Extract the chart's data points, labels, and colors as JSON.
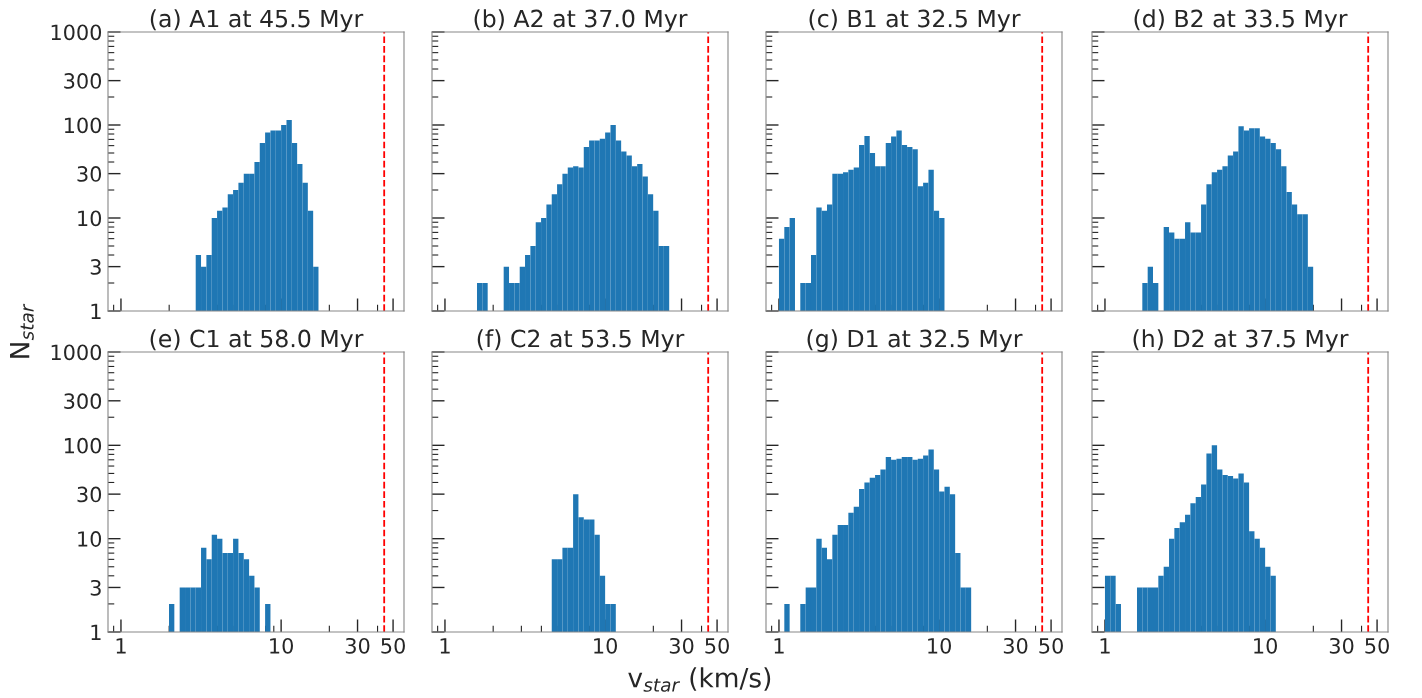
{
  "chart_data": [
    {
      "type": "histogram",
      "title": "(a) A1 at 45.5 Myr",
      "color": "#1f77b4",
      "log": "xy",
      "xlim": [
        0.83,
        58.5
      ],
      "ylim": [
        1,
        1000
      ],
      "xticks": [
        1,
        10,
        30,
        50
      ],
      "yticks": [
        1,
        3,
        10,
        30,
        100,
        300,
        1000
      ],
      "tick_labels": "y",
      "ylabel": "N$_{star}$",
      "ref_lines": [
        {
          "axis": "x",
          "value": 44,
          "color": "#ff0000",
          "line_style": "dashed"
        }
      ],
      "bins": [
        2.929,
        3.162,
        3.415,
        3.687,
        3.981,
        4.299,
        4.642,
        5.012,
        5.412,
        5.843,
        6.31,
        6.813,
        7.356,
        7.943,
        8.577,
        9.261,
        10.0,
        10.8,
        11.66,
        12.59,
        13.59,
        14.68,
        15.85,
        17.11
      ],
      "values": [
        4,
        3,
        4,
        10,
        12,
        13,
        18,
        20,
        24,
        30,
        30,
        40,
        64,
        83,
        87,
        87,
        100,
        113,
        64,
        38,
        24,
        12,
        3
      ]
    },
    {
      "type": "histogram",
      "title": "(b) A2 at 37.0 Myr",
      "color": "#1f77b4",
      "log": "xy",
      "xlim": [
        0.83,
        58.5
      ],
      "ylim": [
        1,
        1000
      ],
      "xticks": [
        1,
        10,
        30,
        50
      ],
      "yticks": [
        1,
        3,
        10,
        30,
        100,
        300,
        1000
      ],
      "tick_labels": false,
      "ref_lines": [
        {
          "axis": "x",
          "value": 44,
          "color": "#ff0000",
          "line_style": "dashed"
        }
      ],
      "bins": [
        1.585,
        1.711,
        1.848,
        1.995,
        2.154,
        2.326,
        2.512,
        2.712,
        2.929,
        3.162,
        3.415,
        3.687,
        3.981,
        4.299,
        4.642,
        5.012,
        5.412,
        5.843,
        6.31,
        6.813,
        7.356,
        7.943,
        8.577,
        9.261,
        10.0,
        10.8,
        11.66,
        12.59,
        13.59,
        14.68,
        15.85,
        17.11,
        18.48,
        19.95,
        21.54,
        23.26,
        25.12
      ],
      "values": [
        2,
        2,
        null,
        null,
        null,
        3,
        2,
        2,
        3,
        4,
        5,
        9,
        10,
        14,
        18,
        23,
        30,
        35,
        36,
        35,
        58,
        68,
        68,
        71,
        83,
        100,
        68,
        52,
        47,
        36,
        38,
        28,
        18,
        12,
        5,
        5
      ]
    },
    {
      "type": "histogram",
      "title": "(c) B1 at 32.5 Myr",
      "color": "#1f77b4",
      "log": "xy",
      "xlim": [
        0.83,
        58.5
      ],
      "ylim": [
        1,
        1000
      ],
      "xticks": [
        1,
        10,
        30,
        50
      ],
      "yticks": [
        1,
        3,
        10,
        30,
        100,
        300,
        1000
      ],
      "tick_labels": false,
      "ref_lines": [
        {
          "axis": "x",
          "value": 44,
          "color": "#ff0000",
          "line_style": "dashed"
        }
      ],
      "bins": [
        1.0,
        1.08,
        1.166,
        1.259,
        1.359,
        1.468,
        1.585,
        1.711,
        1.848,
        1.995,
        2.154,
        2.326,
        2.512,
        2.712,
        2.929,
        3.162,
        3.415,
        3.687,
        3.981,
        4.299,
        4.642,
        5.012,
        5.412,
        5.843,
        6.31,
        6.813,
        7.356,
        7.943,
        8.577,
        9.261,
        10.0,
        10.8
      ],
      "values": [
        6,
        8,
        10,
        null,
        2,
        2,
        4,
        13,
        12,
        14,
        30,
        30,
        31,
        33,
        35,
        61,
        76,
        50,
        36,
        36,
        64,
        75,
        87,
        61,
        58,
        55,
        22,
        24,
        33,
        12,
        10
      ]
    },
    {
      "type": "histogram",
      "title": "(d) B2 at 33.5 Myr",
      "color": "#1f77b4",
      "log": "xy",
      "xlim": [
        0.83,
        58.5
      ],
      "ylim": [
        1,
        1000
      ],
      "xticks": [
        1,
        10,
        30,
        50
      ],
      "yticks": [
        1,
        3,
        10,
        30,
        100,
        300,
        1000
      ],
      "tick_labels": false,
      "ref_lines": [
        {
          "axis": "x",
          "value": 44,
          "color": "#ff0000",
          "line_style": "dashed"
        }
      ],
      "bins": [
        1.711,
        1.848,
        1.995,
        2.154,
        2.326,
        2.512,
        2.712,
        2.929,
        3.162,
        3.415,
        3.687,
        3.981,
        4.299,
        4.642,
        5.012,
        5.412,
        5.843,
        6.31,
        6.813,
        7.356,
        7.943,
        8.577,
        9.261,
        10.0,
        10.8,
        11.66,
        12.59,
        13.59,
        14.68,
        15.85,
        17.11,
        18.48,
        19.95
      ],
      "values": [
        2,
        3,
        2,
        null,
        8,
        7,
        6,
        6,
        9,
        7,
        7,
        14,
        23,
        31,
        33,
        36,
        47,
        52,
        97,
        87,
        92,
        92,
        75,
        71,
        64,
        55,
        36,
        19,
        14,
        11,
        11,
        3
      ]
    },
    {
      "type": "histogram",
      "title": "(e) C1 at 58.0 Myr",
      "color": "#1f77b4",
      "log": "xy",
      "xlim": [
        0.83,
        58.5
      ],
      "ylim": [
        1,
        1000
      ],
      "xticks": [
        1,
        10,
        30,
        50
      ],
      "yticks": [
        1,
        3,
        10,
        30,
        100,
        300,
        1000
      ],
      "ref_lines": [
        {
          "axis": "x",
          "value": 44,
          "color": "#ff0000",
          "line_style": "dashed"
        }
      ],
      "bins": [
        1.995,
        2.154,
        2.326,
        2.512,
        2.712,
        2.929,
        3.162,
        3.415,
        3.687,
        3.981,
        4.299,
        4.642,
        5.012,
        5.412,
        5.843,
        6.31,
        6.813,
        7.356,
        7.943,
        8.577
      ],
      "values": [
        2,
        null,
        3,
        3,
        3,
        3,
        8,
        6,
        11,
        10,
        7,
        7,
        10,
        7,
        6,
        4,
        3,
        null,
        2
      ]
    },
    {
      "type": "histogram",
      "title": "(f) C2 at 53.5 Myr",
      "color": "#1f77b4",
      "log": "xy",
      "xlim": [
        0.83,
        58.5
      ],
      "ylim": [
        1,
        1000
      ],
      "xticks": [
        1,
        10,
        30,
        50
      ],
      "yticks": [
        1,
        3,
        10,
        30,
        100,
        300,
        1000
      ],
      "tick_labels": "x",
      "xlabel": "v$_{star}$ (km/s)",
      "ref_lines": [
        {
          "axis": "x",
          "value": 44,
          "color": "#ff0000",
          "line_style": "dashed"
        }
      ],
      "bins": [
        4.642,
        5.012,
        5.412,
        5.843,
        6.31,
        6.813,
        7.356,
        7.943,
        8.577,
        9.261,
        10.0,
        10.8,
        11.66
      ],
      "values": [
        6,
        6,
        8,
        8,
        30,
        17,
        16,
        16,
        11,
        4,
        2,
        2
      ]
    },
    {
      "type": "histogram",
      "title": "(g) D1 at 32.5 Myr",
      "color": "#1f77b4",
      "log": "xy",
      "xlim": [
        0.83,
        58.5
      ],
      "ylim": [
        1,
        1000
      ],
      "xticks": [
        1,
        10,
        30,
        50
      ],
      "yticks": [
        1,
        3,
        10,
        30,
        100,
        300,
        1000
      ],
      "tick_labels": "x",
      "ref_lines": [
        {
          "axis": "x",
          "value": 44,
          "color": "#ff0000",
          "line_style": "dashed"
        }
      ],
      "bins": [
        1.08,
        1.166,
        1.259,
        1.359,
        1.468,
        1.585,
        1.711,
        1.848,
        1.995,
        2.154,
        2.326,
        2.512,
        2.712,
        2.929,
        3.162,
        3.415,
        3.687,
        3.981,
        4.299,
        4.642,
        5.012,
        5.412,
        5.843,
        6.31,
        6.813,
        7.356,
        7.943,
        8.577,
        9.261,
        10.0,
        10.8,
        11.66,
        12.59,
        13.59,
        14.68,
        15.85
      ],
      "values": [
        2,
        null,
        null,
        2,
        3,
        3,
        10,
        8,
        6,
        11,
        14,
        14,
        19,
        22,
        34,
        40,
        45,
        48,
        55,
        75,
        70,
        72,
        75,
        75,
        70,
        72,
        78,
        90,
        55,
        32,
        36,
        30,
        7,
        3,
        3
      ]
    },
    {
      "type": "histogram",
      "title": "(h) D2 at 37.5 Myr",
      "color": "#1f77b4",
      "log": "xy",
      "xlim": [
        0.83,
        58.5
      ],
      "ylim": [
        1,
        1000
      ],
      "xticks": [
        1,
        10,
        30,
        50
      ],
      "yticks": [
        1,
        3,
        10,
        30,
        100,
        300,
        1000
      ],
      "tick_labels": "x",
      "ref_lines": [
        {
          "axis": "x",
          "value": 44,
          "color": "#ff0000",
          "line_style": "dashed"
        }
      ],
      "bins": [
        1.0,
        1.08,
        1.166,
        1.259,
        1.359,
        1.468,
        1.585,
        1.711,
        1.848,
        1.995,
        2.154,
        2.326,
        2.512,
        2.712,
        2.929,
        3.162,
        3.415,
        3.687,
        3.981,
        4.299,
        4.642,
        5.012,
        5.412,
        5.843,
        6.31,
        6.813,
        7.356,
        7.943,
        8.577,
        9.261,
        10.0,
        10.8,
        11.66
      ],
      "values": [
        4,
        4,
        2,
        null,
        null,
        null,
        3,
        3,
        3,
        3,
        4,
        5,
        10,
        13,
        15,
        18,
        24,
        28,
        38,
        82,
        100,
        55,
        48,
        47,
        44,
        50,
        40,
        12,
        10,
        8,
        5,
        4
      ]
    }
  ]
}
